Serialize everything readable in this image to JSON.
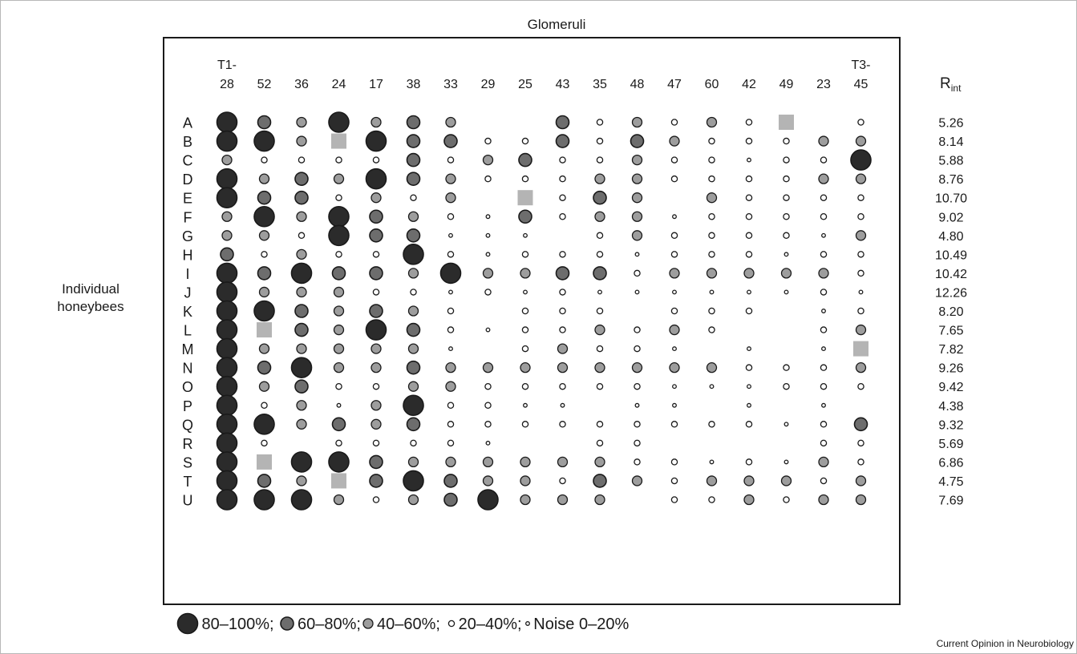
{
  "chart_data": {
    "type": "scatter",
    "title": "Glomeruli",
    "ylabel": "Individual\nhoneybees",
    "columns": [
      {
        "line1": "T1-",
        "line2": "28"
      },
      {
        "line1": "",
        "line2": "52"
      },
      {
        "line1": "",
        "line2": "36"
      },
      {
        "line1": "",
        "line2": "24"
      },
      {
        "line1": "",
        "line2": "17"
      },
      {
        "line1": "",
        "line2": "38"
      },
      {
        "line1": "",
        "line2": "33"
      },
      {
        "line1": "",
        "line2": "29"
      },
      {
        "line1": "",
        "line2": "25"
      },
      {
        "line1": "",
        "line2": "43"
      },
      {
        "line1": "",
        "line2": "35"
      },
      {
        "line1": "",
        "line2": "48"
      },
      {
        "line1": "",
        "line2": "47"
      },
      {
        "line1": "",
        "line2": "60"
      },
      {
        "line1": "",
        "line2": "42"
      },
      {
        "line1": "",
        "line2": "49"
      },
      {
        "line1": "",
        "line2": "23"
      },
      {
        "line1": "T3-",
        "line2": "45"
      }
    ],
    "rint_header": {
      "main": "R",
      "sub": "int"
    },
    "rows": [
      "A",
      "B",
      "C",
      "D",
      "E",
      "F",
      "G",
      "H",
      "I",
      "J",
      "K",
      "L",
      "M",
      "N",
      "O",
      "P",
      "Q",
      "R",
      "S",
      "T",
      "U"
    ],
    "rint": [
      "5.26",
      "8.14",
      "5.88",
      "8.76",
      "10.70",
      "9.02",
      "4.80",
      "10.49",
      "10.42",
      "12.26",
      "8.20",
      "7.65",
      "7.82",
      "9.26",
      "9.42",
      "4.38",
      "9.32",
      "5.69",
      "6.86",
      "4.75",
      "7.69"
    ],
    "level_codes": "0 = empty; 1 = Noise 0–20%; 2 = 20–40%; 3 = 40–60%; 4 = 60–80%; 5 = 80–100%; 9 = grey square",
    "cells": [
      [
        5,
        4,
        3,
        5,
        3,
        4,
        3,
        0,
        0,
        4,
        2,
        3,
        2,
        3,
        2,
        9,
        0,
        2
      ],
      [
        5,
        5,
        3,
        9,
        5,
        4,
        4,
        2,
        2,
        4,
        2,
        4,
        3,
        2,
        2,
        2,
        3,
        3
      ],
      [
        3,
        2,
        2,
        2,
        2,
        4,
        2,
        3,
        4,
        2,
        2,
        3,
        2,
        2,
        1,
        2,
        2,
        5
      ],
      [
        5,
        3,
        4,
        3,
        5,
        4,
        3,
        2,
        2,
        2,
        3,
        3,
        2,
        2,
        2,
        2,
        3,
        3
      ],
      [
        5,
        4,
        4,
        2,
        3,
        2,
        3,
        0,
        9,
        2,
        4,
        3,
        0,
        3,
        2,
        2,
        2,
        2
      ],
      [
        3,
        5,
        3,
        5,
        4,
        3,
        2,
        1,
        4,
        2,
        3,
        3,
        1,
        2,
        2,
        2,
        2,
        2
      ],
      [
        3,
        3,
        2,
        5,
        4,
        4,
        1,
        1,
        1,
        0,
        2,
        3,
        2,
        2,
        2,
        2,
        1,
        3
      ],
      [
        4,
        2,
        3,
        2,
        2,
        5,
        2,
        1,
        2,
        2,
        2,
        1,
        2,
        2,
        2,
        1,
        2,
        2
      ],
      [
        5,
        4,
        5,
        4,
        4,
        3,
        5,
        3,
        3,
        4,
        4,
        2,
        3,
        3,
        3,
        3,
        3,
        2
      ],
      [
        5,
        3,
        3,
        3,
        2,
        2,
        1,
        2,
        1,
        2,
        1,
        1,
        1,
        1,
        1,
        1,
        2,
        1
      ],
      [
        5,
        5,
        4,
        3,
        4,
        3,
        2,
        0,
        2,
        2,
        2,
        0,
        2,
        2,
        2,
        0,
        1,
        2
      ],
      [
        5,
        9,
        4,
        3,
        5,
        4,
        2,
        1,
        2,
        2,
        3,
        2,
        3,
        2,
        0,
        0,
        2,
        3
      ],
      [
        5,
        3,
        3,
        3,
        3,
        3,
        1,
        0,
        2,
        3,
        2,
        2,
        1,
        0,
        1,
        0,
        1,
        9
      ],
      [
        5,
        4,
        5,
        3,
        3,
        4,
        3,
        3,
        3,
        3,
        3,
        3,
        3,
        3,
        2,
        2,
        2,
        3
      ],
      [
        5,
        3,
        4,
        2,
        2,
        3,
        3,
        2,
        2,
        2,
        2,
        2,
        1,
        1,
        1,
        2,
        2,
        2
      ],
      [
        5,
        2,
        3,
        1,
        3,
        5,
        2,
        2,
        1,
        1,
        0,
        1,
        1,
        0,
        1,
        0,
        1,
        0
      ],
      [
        5,
        5,
        3,
        4,
        3,
        4,
        2,
        2,
        2,
        2,
        2,
        2,
        2,
        2,
        2,
        1,
        2,
        4
      ],
      [
        5,
        2,
        0,
        2,
        2,
        2,
        2,
        1,
        0,
        0,
        2,
        2,
        0,
        0,
        0,
        0,
        2,
        2
      ],
      [
        5,
        9,
        5,
        5,
        4,
        3,
        3,
        3,
        3,
        3,
        3,
        2,
        2,
        1,
        2,
        1,
        3,
        2
      ],
      [
        5,
        4,
        3,
        9,
        4,
        5,
        4,
        3,
        3,
        2,
        4,
        3,
        2,
        3,
        3,
        3,
        2,
        3
      ],
      [
        5,
        5,
        5,
        3,
        2,
        3,
        4,
        5,
        3,
        3,
        3,
        0,
        2,
        2,
        3,
        2,
        3,
        3
      ]
    ],
    "legend": [
      {
        "level": 5,
        "label": "80–100%;"
      },
      {
        "level": 4,
        "label": "60–80%;"
      },
      {
        "level": 3,
        "label": "40–60%;"
      },
      {
        "level": 2,
        "label": "20–40%;"
      },
      {
        "level": 1,
        "label": "Noise 0–20%"
      }
    ],
    "colors": {
      "level5": "#2b2b2b",
      "level4": "#6d6d6d",
      "level3": "#9d9d9d",
      "level2": "#ffffff",
      "level1": "#ffffff",
      "square": "#b4b4b4",
      "stroke": "#1a1a1a"
    }
  },
  "credit": "Current Opinion in Neurobiology"
}
